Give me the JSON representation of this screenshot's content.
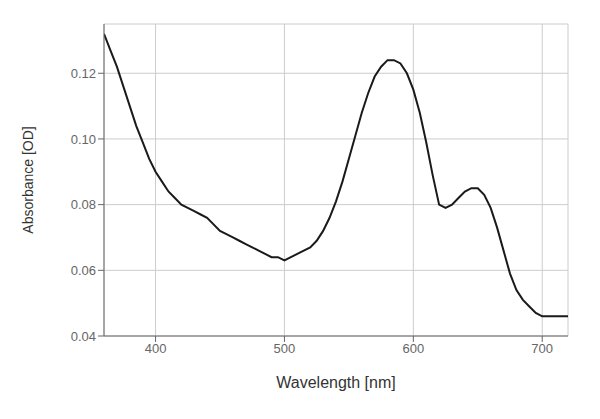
{
  "chart_data": {
    "type": "line",
    "xlabel": "Wavelength [nm]",
    "ylabel": "Absorbance [OD]",
    "xlim": [
      360,
      720
    ],
    "ylim": [
      0.04,
      0.135
    ],
    "xticks": [
      400,
      500,
      600,
      700
    ],
    "yticks": [
      0.04,
      0.06,
      0.08,
      {
        "value": 0.1,
        "label": "0.10"
      },
      0.12
    ],
    "grid": true,
    "series": [
      {
        "color": "#1a1a1a",
        "x": [
          360,
          365,
          370,
          375,
          380,
          385,
          390,
          395,
          400,
          405,
          410,
          415,
          420,
          425,
          430,
          435,
          440,
          445,
          450,
          455,
          460,
          465,
          470,
          475,
          480,
          485,
          490,
          495,
          500,
          505,
          510,
          515,
          520,
          525,
          530,
          535,
          540,
          545,
          550,
          555,
          560,
          565,
          570,
          575,
          580,
          585,
          590,
          595,
          600,
          605,
          610,
          615,
          620,
          625,
          630,
          635,
          640,
          645,
          650,
          655,
          660,
          665,
          670,
          675,
          680,
          685,
          690,
          695,
          700,
          705,
          710,
          715,
          720
        ],
        "values": [
          0.132,
          0.127,
          0.122,
          0.116,
          0.11,
          0.104,
          0.099,
          0.094,
          0.09,
          0.087,
          0.084,
          0.082,
          0.08,
          0.079,
          0.078,
          0.077,
          0.076,
          0.074,
          0.072,
          0.071,
          0.07,
          0.069,
          0.068,
          0.067,
          0.066,
          0.065,
          0.064,
          0.064,
          0.063,
          0.064,
          0.065,
          0.066,
          0.067,
          0.069,
          0.072,
          0.076,
          0.081,
          0.087,
          0.094,
          0.101,
          0.108,
          0.114,
          0.119,
          0.122,
          0.124,
          0.124,
          0.123,
          0.12,
          0.115,
          0.108,
          0.099,
          0.089,
          0.08,
          0.079,
          0.08,
          0.082,
          0.084,
          0.085,
          0.085,
          0.083,
          0.079,
          0.073,
          0.066,
          0.059,
          0.054,
          0.051,
          0.049,
          0.047,
          0.046,
          0.046,
          0.046,
          0.046,
          0.046
        ]
      }
    ]
  }
}
